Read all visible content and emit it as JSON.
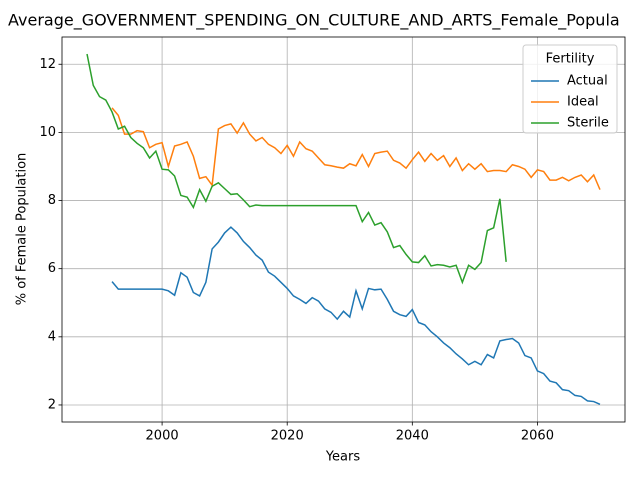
{
  "chart_data": {
    "type": "line",
    "title": "Average_GOVERNMENT_SPENDING_ON_CULTURE_AND_ARTS_Female_Popula",
    "xlabel": "Years",
    "ylabel": "% of Female Population",
    "legend_title": "Fertility",
    "legend": "upper right",
    "grid": true,
    "xlim": [
      1984,
      2074
    ],
    "ylim": [
      1.5,
      12.8
    ],
    "xticks": [
      2000,
      2020,
      2040,
      2060
    ],
    "yticks": [
      2,
      4,
      6,
      8,
      10,
      12
    ],
    "x": [
      1988,
      1989,
      1990,
      1991,
      1992,
      1993,
      1994,
      1995,
      1996,
      1997,
      1998,
      1999,
      2000,
      2001,
      2002,
      2003,
      2004,
      2005,
      2006,
      2007,
      2008,
      2009,
      2010,
      2011,
      2012,
      2013,
      2014,
      2015,
      2016,
      2017,
      2018,
      2019,
      2020,
      2021,
      2022,
      2023,
      2024,
      2025,
      2026,
      2027,
      2028,
      2029,
      2030,
      2031,
      2032,
      2033,
      2034,
      2035,
      2036,
      2037,
      2038,
      2039,
      2040,
      2041,
      2042,
      2043,
      2044,
      2045,
      2046,
      2047,
      2048,
      2049,
      2050,
      2051,
      2052,
      2053,
      2054,
      2055,
      2056,
      2057,
      2058,
      2059,
      2060,
      2061,
      2062,
      2063,
      2064,
      2065,
      2066,
      2067,
      2068,
      2069,
      2070
    ],
    "series": [
      {
        "name": "Actual",
        "color": "#1f77b4",
        "values": [
          null,
          null,
          null,
          null,
          5.62,
          5.4,
          5.4,
          5.4,
          5.4,
          5.4,
          5.4,
          5.4,
          5.4,
          5.35,
          5.22,
          5.88,
          5.75,
          5.3,
          5.2,
          5.6,
          6.58,
          6.78,
          7.05,
          7.22,
          7.05,
          6.8,
          6.62,
          6.4,
          6.25,
          5.9,
          5.78,
          5.6,
          5.42,
          5.2,
          5.1,
          4.98,
          5.15,
          5.05,
          4.82,
          4.72,
          4.52,
          4.75,
          4.58,
          5.35,
          4.82,
          5.42,
          5.38,
          5.4,
          5.1,
          4.75,
          4.65,
          4.6,
          4.8,
          4.42,
          4.35,
          4.15,
          4.0,
          3.82,
          3.68,
          3.5,
          3.35,
          3.18,
          3.28,
          3.18,
          3.48,
          3.38,
          3.88,
          3.92,
          3.95,
          3.82,
          3.45,
          3.38,
          3.0,
          2.92,
          2.7,
          2.65,
          2.45,
          2.42,
          2.28,
          2.25,
          2.12,
          2.1,
          2.02
        ]
      },
      {
        "name": "Ideal",
        "color": "#ff7f0e",
        "values": [
          null,
          null,
          null,
          null,
          10.72,
          10.5,
          9.95,
          9.95,
          10.05,
          10.02,
          9.55,
          9.65,
          9.7,
          9.0,
          9.6,
          9.65,
          9.72,
          9.3,
          8.65,
          8.7,
          8.45,
          10.1,
          10.2,
          10.25,
          9.98,
          10.28,
          9.95,
          9.75,
          9.85,
          9.65,
          9.55,
          9.38,
          9.62,
          9.3,
          9.72,
          9.52,
          9.45,
          9.25,
          9.05,
          9.02,
          8.98,
          8.95,
          9.08,
          9.02,
          9.35,
          9.0,
          9.38,
          9.42,
          9.45,
          9.18,
          9.1,
          8.95,
          9.2,
          9.42,
          9.15,
          9.38,
          9.18,
          9.32,
          9.0,
          9.25,
          8.88,
          9.08,
          8.92,
          9.08,
          8.85,
          8.88,
          8.88,
          8.85,
          9.05,
          9.0,
          8.92,
          8.68,
          8.9,
          8.85,
          8.6,
          8.6,
          8.68,
          8.58,
          8.68,
          8.75,
          8.55,
          8.75,
          8.32
        ]
      },
      {
        "name": "Sterile",
        "color": "#2ca02c",
        "values": [
          12.3,
          11.38,
          11.05,
          10.95,
          10.6,
          10.1,
          10.18,
          9.85,
          9.68,
          9.55,
          9.25,
          9.45,
          8.92,
          8.9,
          8.72,
          8.15,
          8.1,
          7.8,
          8.32,
          7.98,
          8.42,
          8.52,
          8.35,
          8.18,
          8.2,
          8.02,
          7.82,
          7.87,
          7.85,
          7.85,
          7.85,
          7.85,
          7.85,
          7.85,
          7.85,
          7.85,
          7.85,
          7.85,
          7.85,
          7.85,
          7.85,
          7.85,
          7.85,
          7.85,
          7.38,
          7.65,
          7.28,
          7.35,
          7.08,
          6.62,
          6.68,
          6.42,
          6.2,
          6.18,
          6.38,
          6.08,
          6.12,
          6.1,
          6.05,
          6.1,
          5.6,
          6.1,
          5.98,
          6.18,
          7.12,
          7.2,
          8.05,
          6.2,
          null,
          null,
          null,
          null,
          null,
          null,
          null,
          null,
          null,
          null,
          null,
          null,
          null,
          null,
          null
        ]
      }
    ]
  }
}
